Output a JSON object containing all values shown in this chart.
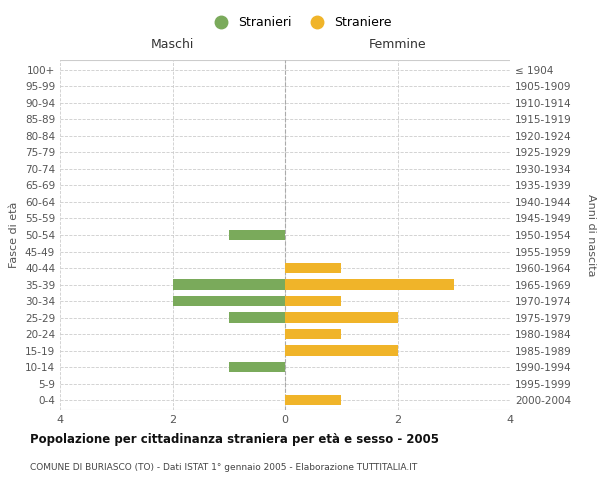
{
  "age_groups": [
    "0-4",
    "5-9",
    "10-14",
    "15-19",
    "20-24",
    "25-29",
    "30-34",
    "35-39",
    "40-44",
    "45-49",
    "50-54",
    "55-59",
    "60-64",
    "65-69",
    "70-74",
    "75-79",
    "80-84",
    "85-89",
    "90-94",
    "95-99",
    "100+"
  ],
  "birth_years": [
    "2000-2004",
    "1995-1999",
    "1990-1994",
    "1985-1989",
    "1980-1984",
    "1975-1979",
    "1970-1974",
    "1965-1969",
    "1960-1964",
    "1955-1959",
    "1950-1954",
    "1945-1949",
    "1940-1944",
    "1935-1939",
    "1930-1934",
    "1925-1929",
    "1920-1924",
    "1915-1919",
    "1910-1914",
    "1905-1909",
    "≤ 1904"
  ],
  "maschi": [
    0,
    0,
    1,
    0,
    0,
    1,
    2,
    2,
    0,
    0,
    1,
    0,
    0,
    0,
    0,
    0,
    0,
    0,
    0,
    0,
    0
  ],
  "femmine": [
    1,
    0,
    0,
    2,
    1,
    2,
    1,
    3,
    1,
    0,
    0,
    0,
    0,
    0,
    0,
    0,
    0,
    0,
    0,
    0,
    0
  ],
  "color_maschi": "#7aaa5b",
  "color_femmine": "#f0b429",
  "title": "Popolazione per cittadinanza straniera per età e sesso - 2005",
  "subtitle": "COMUNE DI BURIASCO (TO) - Dati ISTAT 1° gennaio 2005 - Elaborazione TUTTITALIA.IT",
  "xlabel_left": "Maschi",
  "xlabel_right": "Femmine",
  "ylabel_left": "Fasce di età",
  "ylabel_right": "Anni di nascita",
  "legend_maschi": "Stranieri",
  "legend_femmine": "Straniere",
  "xlim": 4,
  "background_color": "#ffffff",
  "grid_color": "#cccccc",
  "bar_height": 0.65
}
